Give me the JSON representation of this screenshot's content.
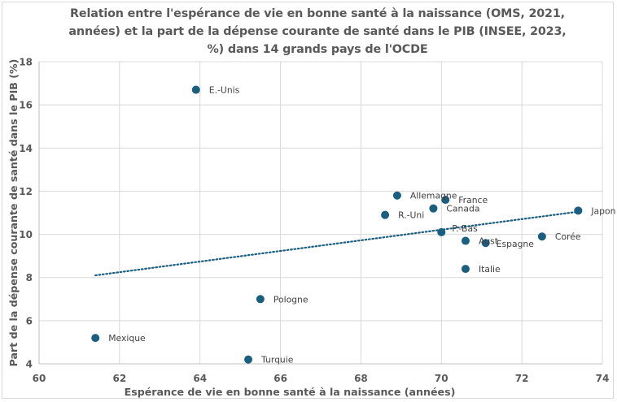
{
  "chart_data": {
    "type": "scatter",
    "title": "Relation entre  l'espérance de vie en bonne santé à la naissance (OMS, 2021, années) et la part de la dépense courante de santé dans le PIB (INSEE, 2023, %) dans 14 grands pays de l'OCDE",
    "title_lines": [
      "Relation entre  l'espérance de vie en bonne santé à la naissance (OMS, 2021,",
      "années) et la part de la dépense courante de santé dans le PIB (INSEE, 2023,",
      "%) dans 14 grands pays de l'OCDE"
    ],
    "xlabel": "Espérance de vie en bonne santé à la naissance (années)",
    "ylabel": "Part de la dépense courante de santé dans le PIB (%)",
    "xlim": [
      60,
      74
    ],
    "ylim": [
      4,
      18
    ],
    "xticks": [
      60,
      62,
      64,
      66,
      68,
      70,
      72,
      74
    ],
    "yticks": [
      4,
      6,
      8,
      10,
      12,
      14,
      16,
      18
    ],
    "grid": true,
    "legend": "none",
    "marker_color": "#1a5e80",
    "points": [
      {
        "label": "E.-Unis",
        "x": 63.9,
        "y": 16.7
      },
      {
        "label": "Allemagne",
        "x": 68.9,
        "y": 11.8
      },
      {
        "label": "France",
        "x": 70.1,
        "y": 11.6
      },
      {
        "label": "Canada",
        "x": 69.8,
        "y": 11.2
      },
      {
        "label": "R.-Uni",
        "x": 68.6,
        "y": 10.9
      },
      {
        "label": "Japon",
        "x": 73.4,
        "y": 11.1
      },
      {
        "label": "P.-Bas",
        "x": 70.0,
        "y": 10.1
      },
      {
        "label": "Autriche",
        "display_label": "Aust",
        "x": 70.6,
        "y": 9.7
      },
      {
        "label": "Espagne",
        "x": 71.1,
        "y": 9.6
      },
      {
        "label": "Corée",
        "x": 72.5,
        "y": 9.9
      },
      {
        "label": "Italie",
        "x": 70.6,
        "y": 8.4
      },
      {
        "label": "Pologne",
        "x": 65.5,
        "y": 7.0
      },
      {
        "label": "Mexique",
        "x": 61.4,
        "y": 5.2
      },
      {
        "label": "Turquie",
        "x": 65.2,
        "y": 4.2
      }
    ],
    "trendline": {
      "type": "linear",
      "style": "dotted",
      "color": "#1a5e80",
      "x": [
        61.4,
        73.4
      ],
      "y": [
        8.1,
        11.05
      ]
    }
  }
}
